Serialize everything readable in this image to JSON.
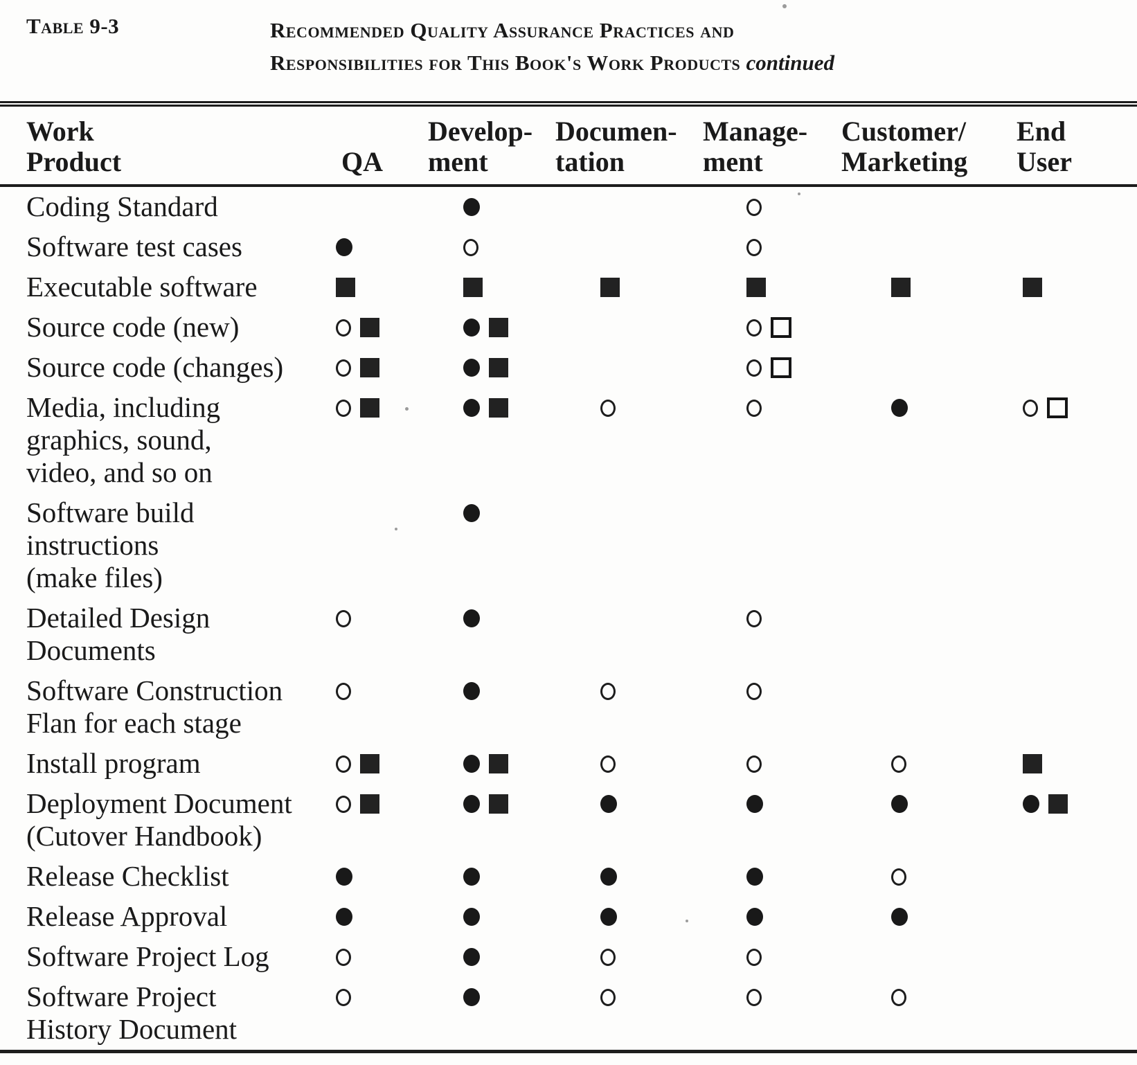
{
  "table_label": "Table 9-3",
  "title_line1": "Recommended Quality Assurance Practices and",
  "title_line2": "Responsibilities for This Book's Work Products",
  "title_continued": "continued",
  "columns": [
    {
      "id": "work_product",
      "label": "Work\nProduct"
    },
    {
      "id": "qa",
      "label": "QA"
    },
    {
      "id": "development",
      "label": "Develop-\nment"
    },
    {
      "id": "documentation",
      "label": "Documen-\ntation"
    },
    {
      "id": "management",
      "label": "Manage-\nment"
    },
    {
      "id": "customer_marketing",
      "label": "Customer/\nMarketing"
    },
    {
      "id": "end_user",
      "label": "End\nUser"
    }
  ],
  "symbols": {
    "filled-circle": "filled circle",
    "open-circle": "open circle",
    "filled-square": "filled square",
    "open-square": "open square"
  },
  "rows": [
    {
      "work_product": "Coding Standard",
      "qa": [],
      "development": [
        "filled-circle"
      ],
      "documentation": [],
      "management": [
        "open-circle"
      ],
      "customer_marketing": [],
      "end_user": []
    },
    {
      "work_product": "Software test cases",
      "qa": [
        "filled-circle"
      ],
      "development": [
        "open-circle"
      ],
      "documentation": [],
      "management": [
        "open-circle"
      ],
      "customer_marketing": [],
      "end_user": []
    },
    {
      "work_product": "Executable software",
      "qa": [
        "filled-square"
      ],
      "development": [
        "filled-square"
      ],
      "documentation": [
        "filled-square"
      ],
      "management": [
        "filled-square"
      ],
      "customer_marketing": [
        "filled-square"
      ],
      "end_user": [
        "filled-square"
      ]
    },
    {
      "work_product": "Source code (new)",
      "qa": [
        "open-circle",
        "filled-square"
      ],
      "development": [
        "filled-circle",
        "filled-square"
      ],
      "documentation": [],
      "management": [
        "open-circle",
        "open-square"
      ],
      "customer_marketing": [],
      "end_user": []
    },
    {
      "work_product": "Source code (changes)",
      "qa": [
        "open-circle",
        "filled-square"
      ],
      "development": [
        "filled-circle",
        "filled-square"
      ],
      "documentation": [],
      "management": [
        "open-circle",
        "open-square"
      ],
      "customer_marketing": [],
      "end_user": []
    },
    {
      "work_product": "Media, including\ngraphics, sound,\nvideo, and so on",
      "qa": [
        "open-circle",
        "filled-square"
      ],
      "development": [
        "filled-circle",
        "filled-square"
      ],
      "documentation": [
        "open-circle"
      ],
      "management": [
        "open-circle"
      ],
      "customer_marketing": [
        "filled-circle"
      ],
      "end_user": [
        "open-circle",
        "open-square"
      ]
    },
    {
      "work_product": "Software build\ninstructions\n(make files)",
      "qa": [],
      "development": [
        "filled-circle"
      ],
      "documentation": [],
      "management": [],
      "customer_marketing": [],
      "end_user": []
    },
    {
      "work_product": "Detailed Design\nDocuments",
      "qa": [
        "open-circle"
      ],
      "development": [
        "filled-circle"
      ],
      "documentation": [],
      "management": [
        "open-circle"
      ],
      "customer_marketing": [],
      "end_user": []
    },
    {
      "work_product": "Software Construction\nFlan for each stage",
      "qa": [
        "open-circle"
      ],
      "development": [
        "filled-circle"
      ],
      "documentation": [
        "open-circle"
      ],
      "management": [
        "open-circle"
      ],
      "customer_marketing": [],
      "end_user": []
    },
    {
      "work_product": "Install program",
      "qa": [
        "open-circle",
        "filled-square"
      ],
      "development": [
        "filled-circle",
        "filled-square"
      ],
      "documentation": [
        "open-circle"
      ],
      "management": [
        "open-circle"
      ],
      "customer_marketing": [
        "open-circle"
      ],
      "end_user": [
        "filled-square"
      ]
    },
    {
      "work_product": "Deployment Document\n(Cutover Handbook)",
      "qa": [
        "open-circle",
        "filled-square"
      ],
      "development": [
        "filled-circle",
        "filled-square"
      ],
      "documentation": [
        "filled-circle"
      ],
      "management": [
        "filled-circle"
      ],
      "customer_marketing": [
        "filled-circle"
      ],
      "end_user": [
        "filled-circle",
        "filled-square"
      ]
    },
    {
      "work_product": "Release Checklist",
      "qa": [
        "filled-circle"
      ],
      "development": [
        "filled-circle"
      ],
      "documentation": [
        "filled-circle"
      ],
      "management": [
        "filled-circle"
      ],
      "customer_marketing": [
        "open-circle"
      ],
      "end_user": []
    },
    {
      "work_product": "Release Approval",
      "qa": [
        "filled-circle"
      ],
      "development": [
        "filled-circle"
      ],
      "documentation": [
        "filled-circle"
      ],
      "management": [
        "filled-circle"
      ],
      "customer_marketing": [
        "filled-circle"
      ],
      "end_user": []
    },
    {
      "work_product": "Software Project Log",
      "qa": [
        "open-circle"
      ],
      "development": [
        "filled-circle"
      ],
      "documentation": [
        "open-circle"
      ],
      "management": [
        "open-circle"
      ],
      "customer_marketing": [],
      "end_user": []
    },
    {
      "work_product": "Software Project\nHistory Document",
      "qa": [
        "open-circle"
      ],
      "development": [
        "filled-circle"
      ],
      "documentation": [
        "open-circle"
      ],
      "management": [
        "open-circle"
      ],
      "customer_marketing": [
        "open-circle"
      ],
      "end_user": []
    }
  ]
}
